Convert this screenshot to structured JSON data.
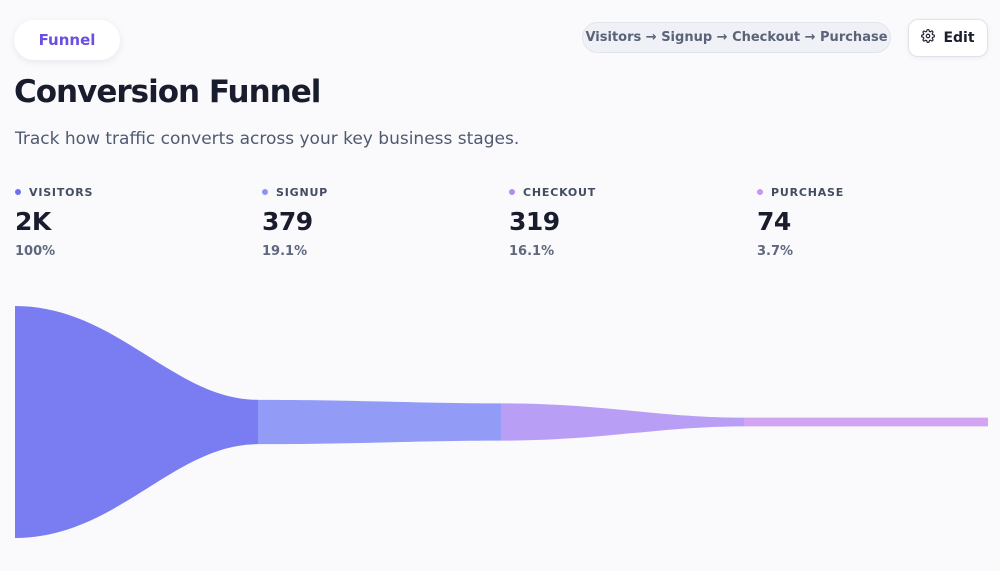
{
  "header": {
    "tab_label": "Funnel",
    "path_label": "Visitors → Signup → Checkout → Purchase",
    "edit_label": "Edit"
  },
  "title": "Conversion Funnel",
  "subtitle": "Track how traffic converts across your key business stages.",
  "stages": [
    {
      "label": "VISITORS",
      "value": "2K",
      "pct": "100%",
      "color": "#6d6ef0"
    },
    {
      "label": "SIGNUP",
      "value": "379",
      "pct": "19.1%",
      "color": "#8a95f5"
    },
    {
      "label": "CHECKOUT",
      "value": "319",
      "pct": "16.1%",
      "color": "#b38cf3"
    },
    {
      "label": "PURCHASE",
      "value": "74",
      "pct": "3.7%",
      "color": "#c995f2"
    }
  ],
  "chart_data": {
    "type": "area",
    "categories": [
      "Visitors",
      "Signup",
      "Checkout",
      "Purchase"
    ],
    "values": [
      1984,
      379,
      319,
      74
    ],
    "percentages": [
      100,
      19.1,
      16.1,
      3.7
    ],
    "colors": [
      "#7a7cf2",
      "#929cf7",
      "#b89ef5",
      "#d3a4f1"
    ]
  }
}
